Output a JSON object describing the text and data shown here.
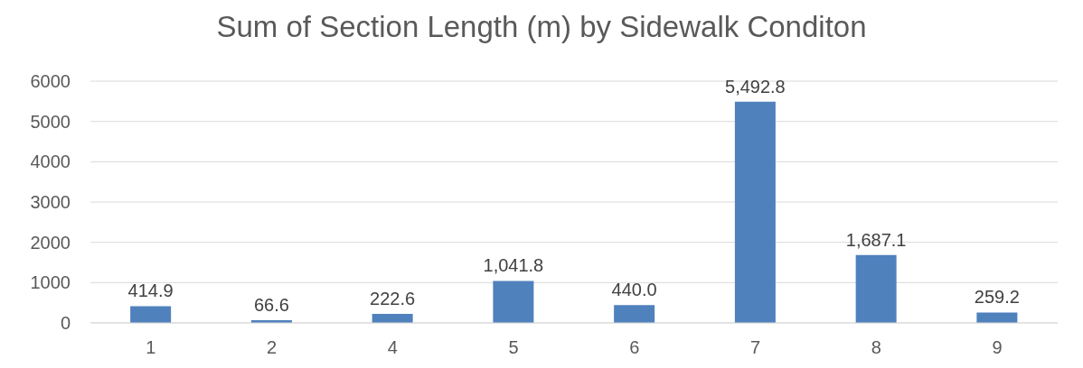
{
  "chart_data": {
    "type": "bar",
    "title": "Sum of Section Length (m) by Sidewalk Conditon",
    "categories": [
      "1",
      "2",
      "4",
      "5",
      "6",
      "7",
      "8",
      "9"
    ],
    "values": [
      414.9,
      66.6,
      222.6,
      1041.8,
      440.0,
      5492.8,
      1687.1,
      259.2
    ],
    "value_labels": [
      "414.9",
      "66.6",
      "222.6",
      "1,041.8",
      "440.0",
      "5,492.8",
      "1,687.1",
      "259.2"
    ],
    "color": "#4f81bd",
    "ylim": [
      0,
      6000
    ],
    "yticks": [
      0,
      1000,
      2000,
      3000,
      4000,
      5000,
      6000
    ],
    "grid": "y"
  }
}
